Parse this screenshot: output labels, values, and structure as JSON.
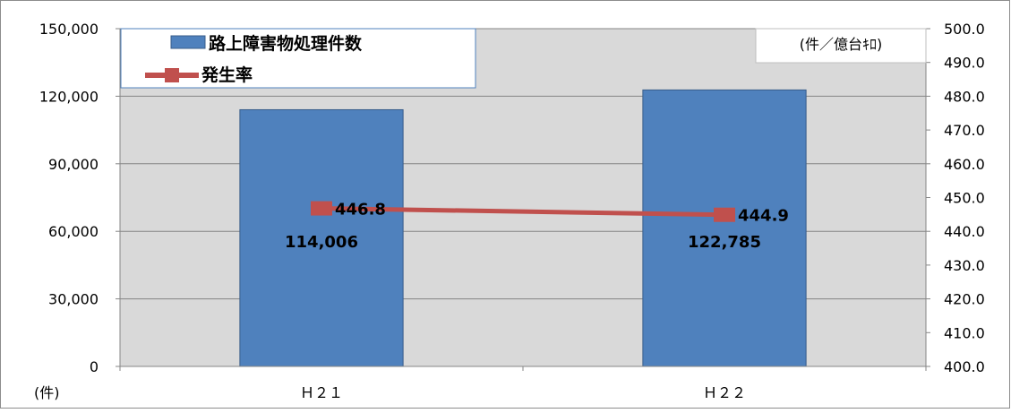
{
  "chart_data": {
    "type": "bar",
    "categories": [
      "Ｈ２１",
      "Ｈ２２"
    ],
    "series": [
      {
        "name": "路上障害物処理件数",
        "kind": "bar",
        "axis": "left",
        "values": [
          114006,
          122785
        ],
        "data_labels": [
          "114,006",
          "122,785"
        ],
        "color": "#4f81bd"
      },
      {
        "name": "発生率",
        "kind": "line",
        "axis": "right",
        "values": [
          446.8,
          444.9
        ],
        "data_labels": [
          "446.8",
          "444.9"
        ],
        "color": "#c0504d"
      }
    ],
    "left_axis": {
      "unit_label": "(件)",
      "ylim": [
        0,
        150000
      ],
      "ticks": [
        0,
        30000,
        60000,
        90000,
        120000,
        150000
      ],
      "tick_labels": [
        "0",
        "30,000",
        "60,000",
        "90,000",
        "120,000",
        "150,000"
      ]
    },
    "right_axis": {
      "unit_label": "(件／億台ｷﾛ)",
      "ylim": [
        400,
        500
      ],
      "ticks": [
        400,
        410,
        420,
        430,
        440,
        450,
        460,
        470,
        480,
        490,
        500
      ],
      "tick_labels": [
        "400.0",
        "410.0",
        "420.0",
        "430.0",
        "440.0",
        "450.0",
        "460.0",
        "470.0",
        "480.0",
        "490.0",
        "500.0"
      ]
    },
    "grid": true,
    "legend_position": "top-left",
    "colors": {
      "plot_background": "#d9d9d9",
      "gridline": "#868686"
    }
  }
}
